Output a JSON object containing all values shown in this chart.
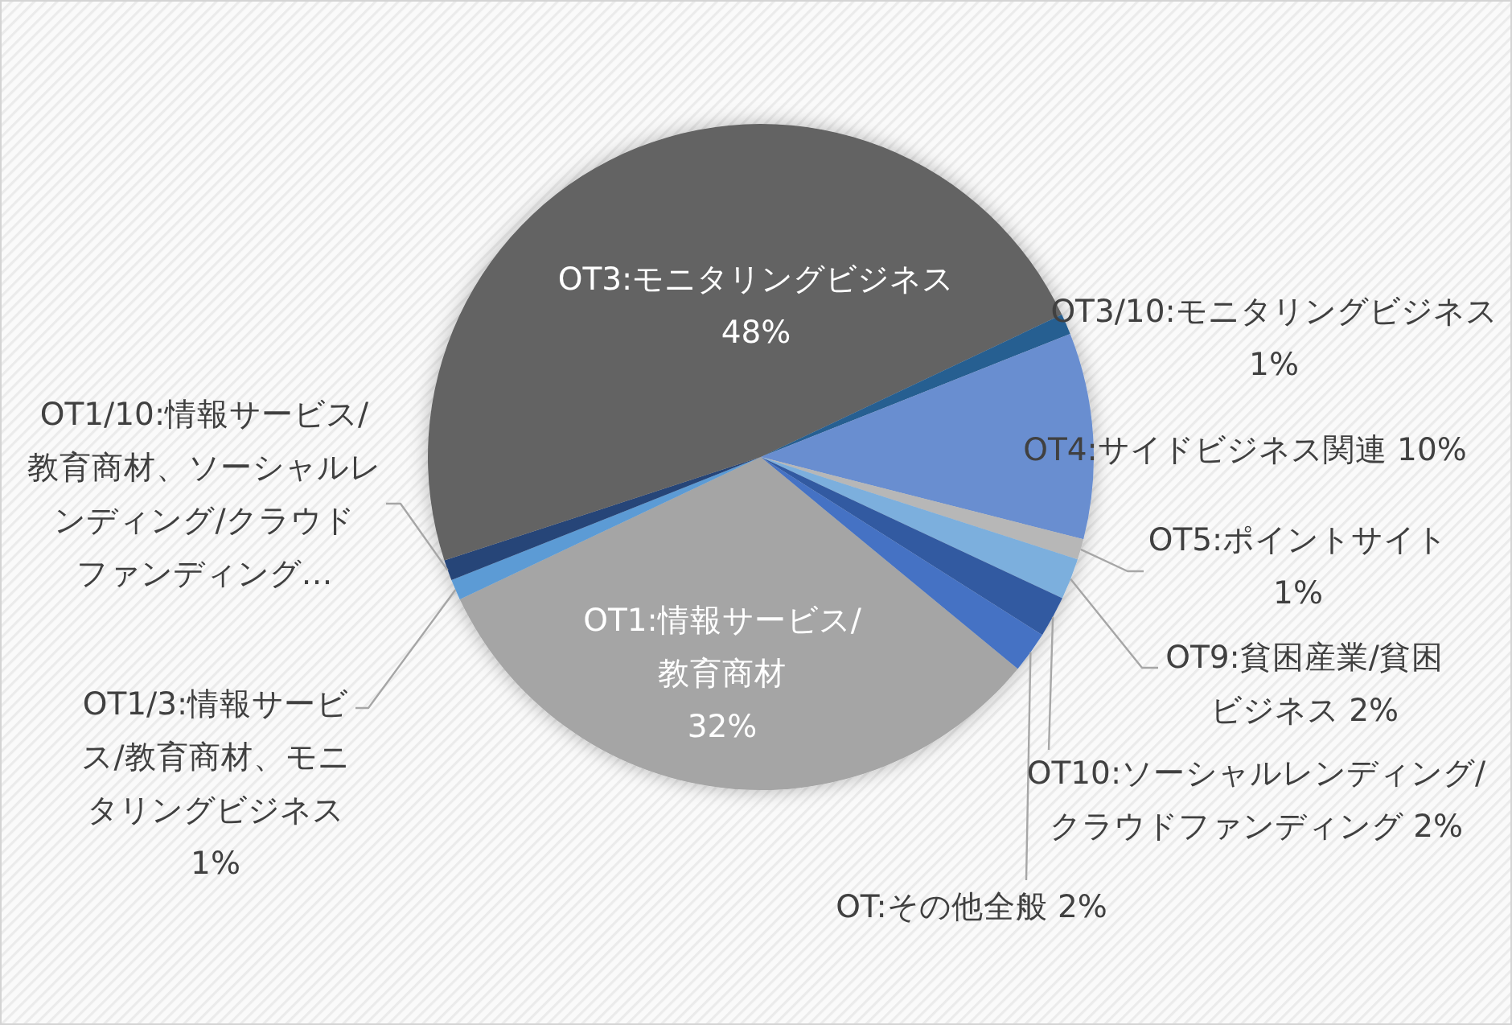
{
  "chart_data": {
    "type": "pie",
    "categories": [
      "OT1:情報サービス/教育商材",
      "OT1/3:情報サービス/教育商材、モニタリングビジネス",
      "OT1/10:情報サービス/教育商材、ソーシャルレンディング/クラウドファンディング…",
      "OT3:モニタリングビジネス",
      "OT3/10:モニタリングビジネス",
      "OT4:サイドビジネス関連",
      "OT5:ポイントサイト",
      "OT9:貧困産業/貧困ビジネス",
      "OT10:ソーシャルレンディング/クラウドファンディング",
      "OT:その他全般"
    ],
    "values": [
      32,
      1,
      1,
      48,
      1,
      10,
      1,
      2,
      2,
      2
    ],
    "value_labels": [
      "32%",
      "1%",
      null,
      "48%",
      "1%",
      "10%",
      "1%",
      "2%",
      "2%",
      "2%"
    ],
    "colors": [
      "#a5a5a5",
      "#5b9bd5",
      "#264478",
      "#636363",
      "#255e91",
      "#698ed0",
      "#b7b7b7",
      "#7cafdd",
      "#335aa1",
      "#4472c4"
    ]
  }
}
